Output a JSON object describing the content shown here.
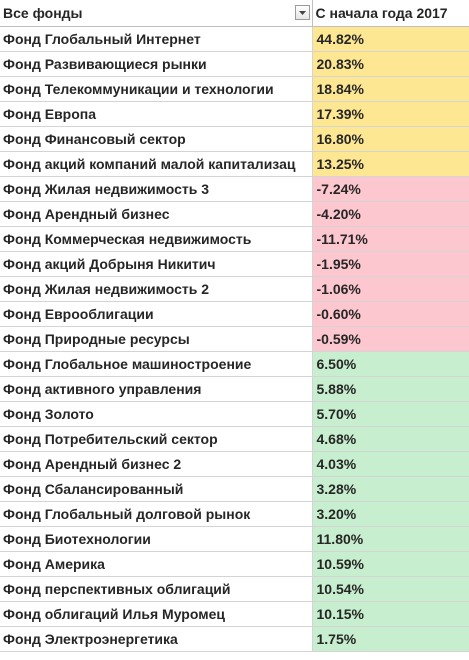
{
  "header": {
    "col1_label": "Все фонды",
    "col2_label": "С начала года 2017"
  },
  "colors": {
    "positive_high": "#fde793",
    "negative": "#fcc7ce",
    "positive_low": "#c7eece"
  },
  "icons": {
    "filter": "chevron-down-icon"
  },
  "rows": [
    {
      "name": "Фонд Глобальный Интернет",
      "value": "44.82%",
      "group": "yellow"
    },
    {
      "name": "Фонд Развивающиеся рынки",
      "value": "20.83%",
      "group": "yellow"
    },
    {
      "name": "Фонд Телекоммуникации и технологии",
      "value": "18.84%",
      "group": "yellow"
    },
    {
      "name": "Фонд Европа",
      "value": "17.39%",
      "group": "yellow"
    },
    {
      "name": "Фонд Финансовый сектор",
      "value": "16.80%",
      "group": "yellow"
    },
    {
      "name": "Фонд акций компаний малой капитализац",
      "value": "13.25%",
      "group": "yellow"
    },
    {
      "name": "Фонд Жилая недвижимость 3",
      "value": "-7.24%",
      "group": "red"
    },
    {
      "name": "Фонд Арендный бизнес",
      "value": "-4.20%",
      "group": "red"
    },
    {
      "name": "Фонд Коммерческая недвижимость",
      "value": "-11.71%",
      "group": "red"
    },
    {
      "name": "Фонд акций Добрыня Никитич",
      "value": "-1.95%",
      "group": "red"
    },
    {
      "name": "Фонд Жилая недвижимость 2",
      "value": "-1.06%",
      "group": "red"
    },
    {
      "name": "Фонд Еврооблигации",
      "value": "-0.60%",
      "group": "red"
    },
    {
      "name": "Фонд Природные ресурсы",
      "value": "-0.59%",
      "group": "red"
    },
    {
      "name": "Фонд Глобальное машиностроение",
      "value": "6.50%",
      "group": "green"
    },
    {
      "name": "Фонд активного управления",
      "value": "5.88%",
      "group": "green"
    },
    {
      "name": "Фонд Золото",
      "value": "5.70%",
      "group": "green"
    },
    {
      "name": "Фонд Потребительский сектор",
      "value": "4.68%",
      "group": "green"
    },
    {
      "name": "Фонд Арендный бизнес 2",
      "value": "4.03%",
      "group": "green"
    },
    {
      "name": "Фонд Сбалансированный",
      "value": "3.28%",
      "group": "green"
    },
    {
      "name": "Фонд Глобальный долговой рынок",
      "value": "3.20%",
      "group": "green"
    },
    {
      "name": "Фонд Биотехнологии",
      "value": "11.80%",
      "group": "green"
    },
    {
      "name": "Фонд Америка",
      "value": "10.59%",
      "group": "green"
    },
    {
      "name": "Фонд перспективных облигаций",
      "value": "10.54%",
      "group": "green"
    },
    {
      "name": "Фонд облигаций Илья Муромец",
      "value": "10.15%",
      "group": "green"
    },
    {
      "name": "Фонд Электроэнергетика",
      "value": "1.75%",
      "group": "green"
    }
  ]
}
